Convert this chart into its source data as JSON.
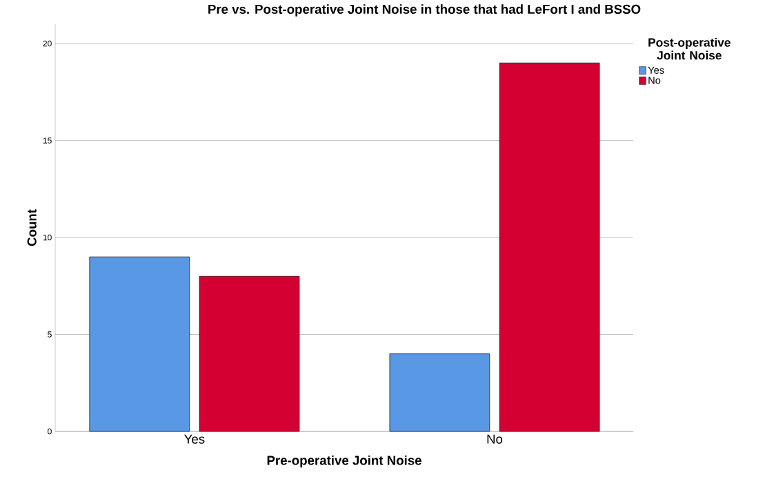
{
  "chart_data": {
    "type": "bar",
    "title": "Pre vs. Post-operative Joint Noise in those that had LeFort I and BSSO",
    "xlabel": "Pre-operative Joint Noise",
    "ylabel": "Count",
    "legend_title": "Post-operative Joint Noise",
    "categories": [
      "Yes",
      "No"
    ],
    "series": [
      {
        "name": "Yes",
        "color": "#5898e4",
        "values": [
          9,
          4
        ]
      },
      {
        "name": "No",
        "color": "#d50032",
        "values": [
          8,
          19
        ]
      }
    ],
    "ylim": [
      0,
      21
    ],
    "yticks": [
      0,
      5,
      10,
      15,
      20
    ],
    "grid": "y",
    "legend": "top right"
  }
}
